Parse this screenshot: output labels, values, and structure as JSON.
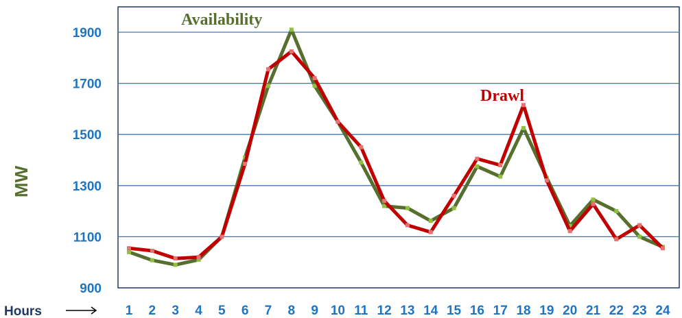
{
  "chart_data": {
    "type": "line",
    "x": [
      "1",
      "2",
      "3",
      "4",
      "5",
      "6",
      "7",
      "8",
      "9",
      "10",
      "11",
      "12",
      "13",
      "14",
      "15",
      "16",
      "17",
      "18",
      "19",
      "20",
      "21",
      "22",
      "23",
      "24"
    ],
    "ylabel": "MW",
    "xlabel": "Hours",
    "yticks": [
      900,
      1100,
      1300,
      1500,
      1700,
      1900
    ],
    "ylim": [
      900,
      2000
    ],
    "grid": true,
    "series": [
      {
        "name": "Availability",
        "color": "#566f2e",
        "values": [
          1040,
          1008,
          990,
          1010,
          1100,
          1410,
          1690,
          1910,
          1690,
          1550,
          1390,
          1220,
          1212,
          1162,
          1212,
          1375,
          1335,
          1525,
          1330,
          1142,
          1245,
          1200,
          1100,
          1060
        ]
      },
      {
        "name": "Drawl",
        "color": "#c00000",
        "values": [
          1055,
          1045,
          1015,
          1020,
          1100,
          1385,
          1755,
          1825,
          1720,
          1550,
          1450,
          1240,
          1145,
          1118,
          1260,
          1405,
          1380,
          1615,
          1320,
          1122,
          1228,
          1090,
          1145,
          1055
        ]
      }
    ],
    "annotations": [
      {
        "text": "Availability",
        "color": "#566f2e"
      },
      {
        "text": "Drawl",
        "color": "#c00000"
      }
    ]
  }
}
